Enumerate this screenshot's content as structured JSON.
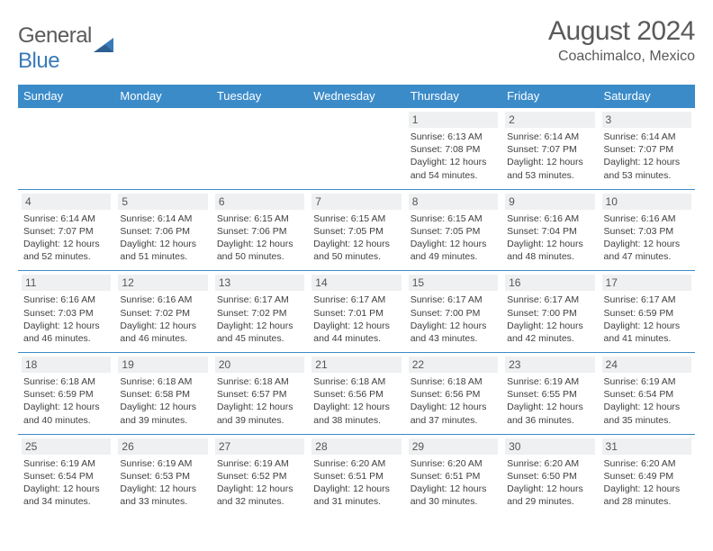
{
  "colors": {
    "header_bg": "#3b8bc9",
    "header_text": "#ffffff",
    "border": "#3b8bc9",
    "daynum_bg": "#eef0f2",
    "body_text": "#404040",
    "title_text": "#5a5a5a",
    "logo_blue": "#3a7ab8"
  },
  "logo": {
    "part1": "General",
    "part2": "Blue"
  },
  "title": "August 2024",
  "location": "Coachimalco, Mexico",
  "weekdays": [
    "Sunday",
    "Monday",
    "Tuesday",
    "Wednesday",
    "Thursday",
    "Friday",
    "Saturday"
  ],
  "weeks": [
    [
      null,
      null,
      null,
      null,
      {
        "n": "1",
        "sr": "6:13 AM",
        "ss": "7:08 PM",
        "dl": "12 hours and 54 minutes."
      },
      {
        "n": "2",
        "sr": "6:14 AM",
        "ss": "7:07 PM",
        "dl": "12 hours and 53 minutes."
      },
      {
        "n": "3",
        "sr": "6:14 AM",
        "ss": "7:07 PM",
        "dl": "12 hours and 53 minutes."
      }
    ],
    [
      {
        "n": "4",
        "sr": "6:14 AM",
        "ss": "7:07 PM",
        "dl": "12 hours and 52 minutes."
      },
      {
        "n": "5",
        "sr": "6:14 AM",
        "ss": "7:06 PM",
        "dl": "12 hours and 51 minutes."
      },
      {
        "n": "6",
        "sr": "6:15 AM",
        "ss": "7:06 PM",
        "dl": "12 hours and 50 minutes."
      },
      {
        "n": "7",
        "sr": "6:15 AM",
        "ss": "7:05 PM",
        "dl": "12 hours and 50 minutes."
      },
      {
        "n": "8",
        "sr": "6:15 AM",
        "ss": "7:05 PM",
        "dl": "12 hours and 49 minutes."
      },
      {
        "n": "9",
        "sr": "6:16 AM",
        "ss": "7:04 PM",
        "dl": "12 hours and 48 minutes."
      },
      {
        "n": "10",
        "sr": "6:16 AM",
        "ss": "7:03 PM",
        "dl": "12 hours and 47 minutes."
      }
    ],
    [
      {
        "n": "11",
        "sr": "6:16 AM",
        "ss": "7:03 PM",
        "dl": "12 hours and 46 minutes."
      },
      {
        "n": "12",
        "sr": "6:16 AM",
        "ss": "7:02 PM",
        "dl": "12 hours and 46 minutes."
      },
      {
        "n": "13",
        "sr": "6:17 AM",
        "ss": "7:02 PM",
        "dl": "12 hours and 45 minutes."
      },
      {
        "n": "14",
        "sr": "6:17 AM",
        "ss": "7:01 PM",
        "dl": "12 hours and 44 minutes."
      },
      {
        "n": "15",
        "sr": "6:17 AM",
        "ss": "7:00 PM",
        "dl": "12 hours and 43 minutes."
      },
      {
        "n": "16",
        "sr": "6:17 AM",
        "ss": "7:00 PM",
        "dl": "12 hours and 42 minutes."
      },
      {
        "n": "17",
        "sr": "6:17 AM",
        "ss": "6:59 PM",
        "dl": "12 hours and 41 minutes."
      }
    ],
    [
      {
        "n": "18",
        "sr": "6:18 AM",
        "ss": "6:59 PM",
        "dl": "12 hours and 40 minutes."
      },
      {
        "n": "19",
        "sr": "6:18 AM",
        "ss": "6:58 PM",
        "dl": "12 hours and 39 minutes."
      },
      {
        "n": "20",
        "sr": "6:18 AM",
        "ss": "6:57 PM",
        "dl": "12 hours and 39 minutes."
      },
      {
        "n": "21",
        "sr": "6:18 AM",
        "ss": "6:56 PM",
        "dl": "12 hours and 38 minutes."
      },
      {
        "n": "22",
        "sr": "6:18 AM",
        "ss": "6:56 PM",
        "dl": "12 hours and 37 minutes."
      },
      {
        "n": "23",
        "sr": "6:19 AM",
        "ss": "6:55 PM",
        "dl": "12 hours and 36 minutes."
      },
      {
        "n": "24",
        "sr": "6:19 AM",
        "ss": "6:54 PM",
        "dl": "12 hours and 35 minutes."
      }
    ],
    [
      {
        "n": "25",
        "sr": "6:19 AM",
        "ss": "6:54 PM",
        "dl": "12 hours and 34 minutes."
      },
      {
        "n": "26",
        "sr": "6:19 AM",
        "ss": "6:53 PM",
        "dl": "12 hours and 33 minutes."
      },
      {
        "n": "27",
        "sr": "6:19 AM",
        "ss": "6:52 PM",
        "dl": "12 hours and 32 minutes."
      },
      {
        "n": "28",
        "sr": "6:20 AM",
        "ss": "6:51 PM",
        "dl": "12 hours and 31 minutes."
      },
      {
        "n": "29",
        "sr": "6:20 AM",
        "ss": "6:51 PM",
        "dl": "12 hours and 30 minutes."
      },
      {
        "n": "30",
        "sr": "6:20 AM",
        "ss": "6:50 PM",
        "dl": "12 hours and 29 minutes."
      },
      {
        "n": "31",
        "sr": "6:20 AM",
        "ss": "6:49 PM",
        "dl": "12 hours and 28 minutes."
      }
    ]
  ],
  "labels": {
    "sunrise": "Sunrise: ",
    "sunset": "Sunset: ",
    "daylight": "Daylight: "
  }
}
